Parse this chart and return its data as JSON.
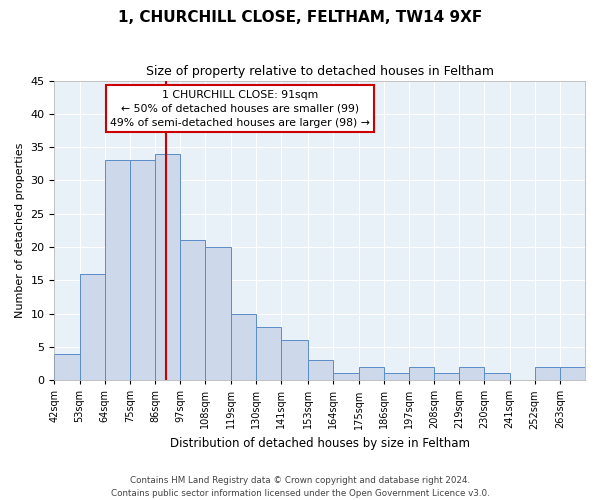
{
  "title": "1, CHURCHILL CLOSE, FELTHAM, TW14 9XF",
  "subtitle": "Size of property relative to detached houses in Feltham",
  "xlabel": "Distribution of detached houses by size in Feltham",
  "ylabel": "Number of detached properties",
  "bar_labels": [
    "42sqm",
    "53sqm",
    "64sqm",
    "75sqm",
    "86sqm",
    "97sqm",
    "108sqm",
    "119sqm",
    "130sqm",
    "141sqm",
    "153sqm",
    "164sqm",
    "175sqm",
    "186sqm",
    "197sqm",
    "208sqm",
    "219sqm",
    "230sqm",
    "241sqm",
    "252sqm",
    "263sqm"
  ],
  "bar_heights": [
    4,
    16,
    33,
    33,
    34,
    21,
    20,
    10,
    8,
    6,
    3,
    1,
    2,
    1,
    2,
    1,
    2,
    1,
    0,
    2,
    2
  ],
  "bar_color": "#cdd9ea",
  "bar_edge_color": "#5b8cc8",
  "annotation_line1": "1 CHURCHILL CLOSE: 91sqm",
  "annotation_line2": "← 50% of detached houses are smaller (99)",
  "annotation_line3": "49% of semi-detached houses are larger (98) →",
  "annotation_box_edge_color": "#cc0000",
  "property_line_x": 91,
  "ylim": [
    0,
    45
  ],
  "yticks": [
    0,
    5,
    10,
    15,
    20,
    25,
    30,
    35,
    40,
    45
  ],
  "footer_line1": "Contains HM Land Registry data © Crown copyright and database right 2024.",
  "footer_line2": "Contains public sector information licensed under the Open Government Licence v3.0.",
  "bin_edges": [
    42,
    53,
    64,
    75,
    86,
    97,
    108,
    119,
    130,
    141,
    153,
    164,
    175,
    186,
    197,
    208,
    219,
    230,
    241,
    252,
    263,
    274
  ]
}
